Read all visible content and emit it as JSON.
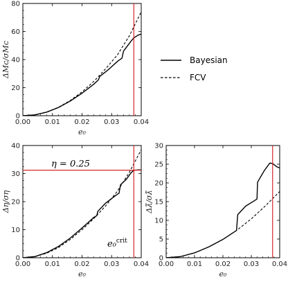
{
  "colors": {
    "bayesian": "#000000",
    "fcv": "#000000",
    "vline": "#d62728",
    "hline": "#d62728",
    "frame": "#000000"
  },
  "legend": {
    "entries": [
      {
        "label": "Bayesian",
        "style": "solid"
      },
      {
        "label": "FCV",
        "style": "dashed"
      }
    ]
  },
  "chart_data": [
    {
      "id": "top-left",
      "type": "line",
      "xlabel": "e₀",
      "ylabel": "ΔM_c/σ_{M_c}",
      "ylabel_display": "ΔMᴄ/σMᴄ",
      "xlim": [
        0,
        0.04
      ],
      "ylim": [
        0,
        80
      ],
      "xticks": [
        "0.00",
        "0.01",
        "0.02",
        "0.03",
        "0.04"
      ],
      "yticks": [
        "0",
        "20",
        "40",
        "60",
        "80"
      ],
      "vline_x": 0.0375,
      "series": [
        {
          "name": "Bayesian",
          "style": "solid",
          "x": [
            0,
            0.004,
            0.008,
            0.012,
            0.016,
            0.02,
            0.024,
            0.0255,
            0.026,
            0.029,
            0.032,
            0.0335,
            0.034,
            0.0365,
            0.0375,
            0.039,
            0.04
          ],
          "y": [
            0,
            0.6,
            2.5,
            5.8,
            10.4,
            16.0,
            22.5,
            25.5,
            28.0,
            33.0,
            38.8,
            41.0,
            46.0,
            53.0,
            55.5,
            57.5,
            58.2
          ]
        },
        {
          "name": "FCV",
          "style": "dashed",
          "x": [
            0,
            0.004,
            0.008,
            0.012,
            0.016,
            0.02,
            0.024,
            0.028,
            0.032,
            0.036,
            0.04
          ],
          "y": [
            0,
            0.6,
            2.6,
            6.0,
            10.8,
            17.0,
            24.5,
            33.5,
            43.5,
            57.0,
            74.0
          ]
        }
      ]
    },
    {
      "id": "bottom-left",
      "type": "line",
      "xlabel": "e₀",
      "ylabel": "Δη/σ_η",
      "ylabel_display": "Δη/ση",
      "xlim": [
        0,
        0.04
      ],
      "ylim": [
        0,
        40
      ],
      "xticks": [
        "0.00",
        "0.01",
        "0.02",
        "0.03",
        "0.04"
      ],
      "yticks": [
        "0",
        "10",
        "20",
        "30",
        "40"
      ],
      "vline_x": 0.0375,
      "hline_y": 31.2,
      "annotations": [
        {
          "text": "η = 0.25"
        },
        {
          "text": "e₀^crit"
        }
      ],
      "series": [
        {
          "name": "Bayesian",
          "style": "solid",
          "x": [
            0,
            0.004,
            0.008,
            0.012,
            0.016,
            0.02,
            0.024,
            0.025,
            0.0253,
            0.028,
            0.0315,
            0.0325,
            0.033,
            0.035,
            0.0365,
            0.0375,
            0.039,
            0.04
          ],
          "y": [
            0,
            0.4,
            1.8,
            4.0,
            7.0,
            10.6,
            14.4,
            15.0,
            16.5,
            19.5,
            22.3,
            23.0,
            26.0,
            28.0,
            30.2,
            31.2,
            31.3,
            31.3
          ]
        },
        {
          "name": "FCV",
          "style": "dashed",
          "x": [
            0,
            0.004,
            0.008,
            0.012,
            0.016,
            0.02,
            0.024,
            0.028,
            0.032,
            0.036,
            0.04
          ],
          "y": [
            0,
            0.35,
            1.6,
            3.6,
            6.5,
            10.0,
            14.0,
            18.5,
            23.8,
            30.5,
            38.5
          ]
        }
      ]
    },
    {
      "id": "bottom-right",
      "type": "line",
      "xlabel": "e₀",
      "ylabel": "Δλ̃/σ_λ̃",
      "ylabel_display": "Δλ̃/σλ̃",
      "xlim": [
        0,
        0.04
      ],
      "ylim": [
        0,
        30
      ],
      "xticks": [
        "0.00",
        "0.01",
        "0.02",
        "0.03",
        "0.04"
      ],
      "yticks": [
        "0",
        "5",
        "10",
        "15",
        "20",
        "25",
        "30"
      ],
      "vline_x": 0.0375,
      "series": [
        {
          "name": "Bayesian",
          "style": "solid",
          "x": [
            0,
            0.005,
            0.01,
            0.015,
            0.02,
            0.0248,
            0.0252,
            0.028,
            0.031,
            0.032,
            0.0322,
            0.0345,
            0.0365,
            0.0375,
            0.039,
            0.04
          ],
          "y": [
            0,
            0.3,
            1.3,
            2.9,
            4.9,
            7.3,
            11.5,
            13.8,
            15.2,
            15.7,
            20.2,
            23.2,
            25.3,
            25.2,
            24.3,
            24.0
          ]
        },
        {
          "name": "FCV",
          "style": "dashed",
          "x": [
            0,
            0.005,
            0.01,
            0.015,
            0.02,
            0.025,
            0.03,
            0.035,
            0.04
          ],
          "y": [
            0,
            0.3,
            1.3,
            2.9,
            4.9,
            7.4,
            10.4,
            13.9,
            17.7
          ]
        }
      ]
    }
  ]
}
